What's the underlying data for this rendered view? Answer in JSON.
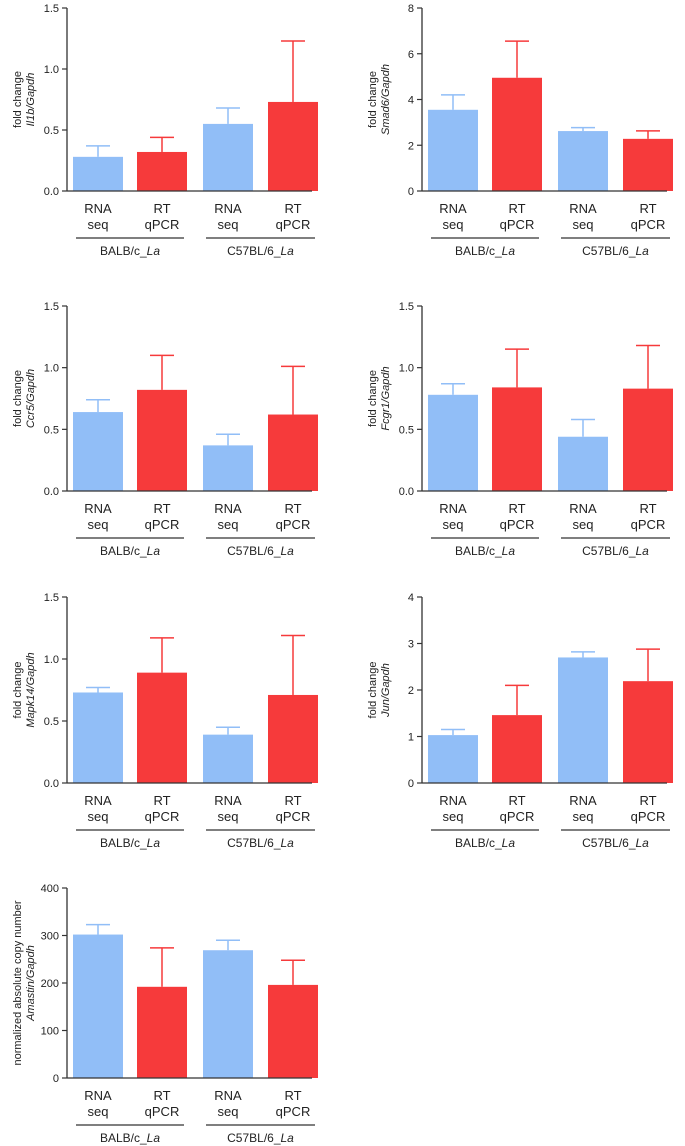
{
  "colors": {
    "rna_seq": "#91bef7",
    "rt_qpcr": "#f63a3b",
    "axis": "#333333"
  },
  "category_labels": [
    [
      "RNA",
      "seq"
    ],
    [
      "RT",
      "qPCR"
    ],
    [
      "RNA",
      "seq"
    ],
    [
      "RT",
      "qPCR"
    ]
  ],
  "group_labels": [
    {
      "prefix": "BALB/c_",
      "italic": "La"
    },
    {
      "prefix": "C57BL/6_",
      "italic": "La"
    }
  ],
  "chart_data": [
    {
      "type": "bar",
      "ylabel_line1": "fold change",
      "ylabel_gene": "Il1b",
      "ylabel_ref": "/Gapdh",
      "categories": [
        "RNA seq",
        "RT qPCR",
        "RNA seq",
        "RT qPCR"
      ],
      "values": [
        0.28,
        0.32,
        0.55,
        0.73
      ],
      "errors": [
        0.09,
        0.12,
        0.13,
        0.5
      ],
      "ylim": [
        0,
        1.5
      ],
      "yticks": [
        "0.0",
        "0.5",
        "1.0",
        "1.5"
      ]
    },
    {
      "type": "bar",
      "ylabel_line1": "fold change",
      "ylabel_gene": "Smad6",
      "ylabel_ref": "/Gapdh",
      "categories": [
        "RNA seq",
        "RT qPCR",
        "RNA seq",
        "RT qPCR"
      ],
      "values": [
        3.55,
        4.95,
        2.62,
        2.28
      ],
      "errors": [
        0.65,
        1.6,
        0.15,
        0.35
      ],
      "ylim": [
        0,
        8
      ],
      "yticks": [
        "0",
        "2",
        "4",
        "6",
        "8"
      ]
    },
    {
      "type": "bar",
      "ylabel_line1": "fold change",
      "ylabel_gene": "Ccr5",
      "ylabel_ref": "/Gapdh",
      "categories": [
        "RNA seq",
        "RT qPCR",
        "RNA seq",
        "RT qPCR"
      ],
      "values": [
        0.64,
        0.82,
        0.37,
        0.62
      ],
      "errors": [
        0.1,
        0.28,
        0.09,
        0.39
      ],
      "ylim": [
        0,
        1.5
      ],
      "yticks": [
        "0.0",
        "0.5",
        "1.0",
        "1.5"
      ]
    },
    {
      "type": "bar",
      "ylabel_line1": "fold change",
      "ylabel_gene": "Fcgr1",
      "ylabel_ref": "/Gapdh",
      "categories": [
        "RNA seq",
        "RT qPCR",
        "RNA seq",
        "RT qPCR"
      ],
      "values": [
        0.78,
        0.84,
        0.44,
        0.83
      ],
      "errors": [
        0.09,
        0.31,
        0.14,
        0.35
      ],
      "ylim": [
        0,
        1.5
      ],
      "yticks": [
        "0.0",
        "0.5",
        "1.0",
        "1.5"
      ]
    },
    {
      "type": "bar",
      "ylabel_line1": "fold change",
      "ylabel_gene": "Mapk14",
      "ylabel_ref": "/Gapdh",
      "categories": [
        "RNA seq",
        "RT qPCR",
        "RNA seq",
        "RT qPCR"
      ],
      "values": [
        0.73,
        0.89,
        0.39,
        0.71
      ],
      "errors": [
        0.04,
        0.28,
        0.06,
        0.48
      ],
      "ylim": [
        0,
        1.5
      ],
      "yticks": [
        "0.0",
        "0.5",
        "1.0",
        "1.5"
      ]
    },
    {
      "type": "bar",
      "ylabel_line1": "fold change",
      "ylabel_gene": "Jun",
      "ylabel_ref": "/Gapdh",
      "categories": [
        "RNA seq",
        "RT qPCR",
        "RNA seq",
        "RT qPCR"
      ],
      "values": [
        1.03,
        1.46,
        2.7,
        2.19
      ],
      "errors": [
        0.12,
        0.64,
        0.12,
        0.69
      ],
      "ylim": [
        0,
        4
      ],
      "yticks": [
        "0",
        "1",
        "2",
        "3",
        "4"
      ]
    },
    {
      "type": "bar",
      "ylabel_line1": "normalized absolute copy number",
      "ylabel_gene": "Amastin",
      "ylabel_ref": "/Gapdh",
      "categories": [
        "RNA seq",
        "RT qPCR",
        "RNA seq",
        "RT qPCR"
      ],
      "values": [
        302,
        192,
        269,
        196
      ],
      "errors": [
        21,
        82,
        21,
        52
      ],
      "ylim": [
        0,
        400
      ],
      "yticks": [
        "0",
        "100",
        "200",
        "300",
        "400"
      ]
    }
  ]
}
